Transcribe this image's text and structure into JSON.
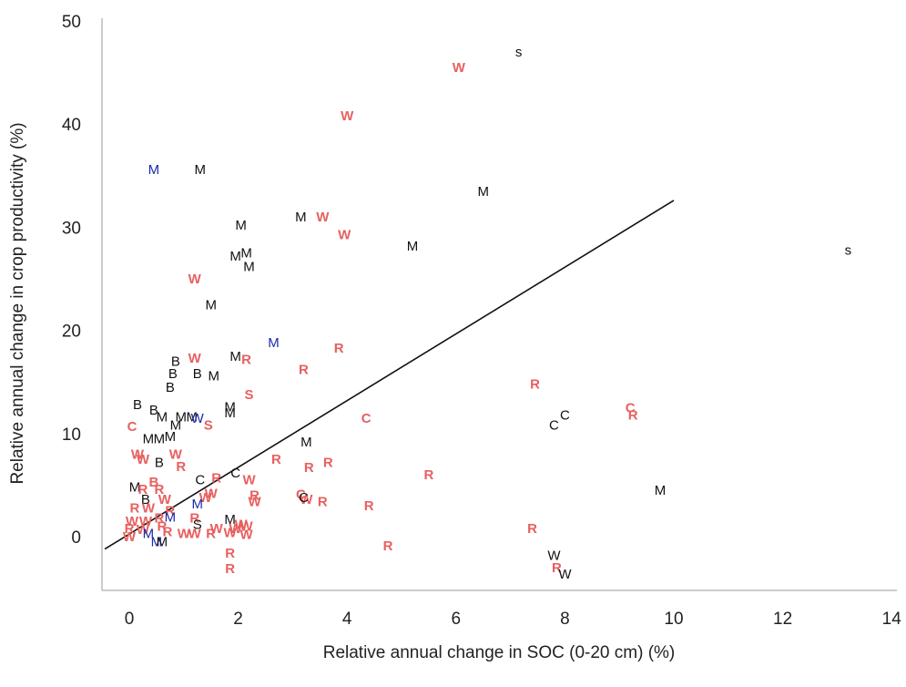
{
  "chart_data": {
    "type": "scatter",
    "title": "",
    "xlabel": "Relative annual change in SOC (0-20 cm) (%)",
    "ylabel": "Relative annual change in crop productivity (%)",
    "xlim": [
      -0.5,
      14
    ],
    "ylim": [
      -5,
      50
    ],
    "xticks": [
      "0",
      "2",
      "4",
      "6",
      "8",
      "10",
      "12",
      "14"
    ],
    "yticks": [
      "0",
      "10",
      "20",
      "30",
      "40",
      "50"
    ],
    "grid": false,
    "legend": "none",
    "colors": {
      "black": "#111111",
      "red": "#e86060",
      "blue": "#1a2aa8",
      "axis": "#999999",
      "line": "#111111"
    },
    "trendline": {
      "x": [
        -0.45,
        10.0
      ],
      "y": [
        -1.2,
        32.6
      ]
    },
    "points": [
      {
        "label": "s",
        "x": 7.15,
        "y": 47.0,
        "color": "black"
      },
      {
        "label": "W",
        "x": 6.05,
        "y": 45.5,
        "color": "red"
      },
      {
        "label": "W",
        "x": 4.0,
        "y": 40.8,
        "color": "red"
      },
      {
        "label": "M",
        "x": 0.45,
        "y": 35.6,
        "color": "blue"
      },
      {
        "label": "M",
        "x": 1.3,
        "y": 35.6,
        "color": "black"
      },
      {
        "label": "M",
        "x": 6.5,
        "y": 33.5,
        "color": "black"
      },
      {
        "label": "M",
        "x": 3.15,
        "y": 31.0,
        "color": "black"
      },
      {
        "label": "W",
        "x": 3.55,
        "y": 31.0,
        "color": "red"
      },
      {
        "label": "M",
        "x": 2.05,
        "y": 30.2,
        "color": "black"
      },
      {
        "label": "W",
        "x": 3.95,
        "y": 29.3,
        "color": "red"
      },
      {
        "label": "M",
        "x": 5.2,
        "y": 28.2,
        "color": "black"
      },
      {
        "label": "s",
        "x": 13.2,
        "y": 27.8,
        "color": "black"
      },
      {
        "label": "M",
        "x": 1.95,
        "y": 27.2,
        "color": "black"
      },
      {
        "label": "M",
        "x": 2.15,
        "y": 27.5,
        "color": "black"
      },
      {
        "label": "M",
        "x": 2.2,
        "y": 26.2,
        "color": "black"
      },
      {
        "label": "W",
        "x": 1.2,
        "y": 25.0,
        "color": "red"
      },
      {
        "label": "M",
        "x": 1.5,
        "y": 22.5,
        "color": "black"
      },
      {
        "label": "M",
        "x": 2.65,
        "y": 18.8,
        "color": "blue"
      },
      {
        "label": "R",
        "x": 3.85,
        "y": 18.3,
        "color": "red"
      },
      {
        "label": "M",
        "x": 1.95,
        "y": 17.5,
        "color": "black"
      },
      {
        "label": "R",
        "x": 2.15,
        "y": 17.2,
        "color": "red"
      },
      {
        "label": "W",
        "x": 1.2,
        "y": 17.3,
        "color": "red"
      },
      {
        "label": "B",
        "x": 0.85,
        "y": 17.0,
        "color": "black"
      },
      {
        "label": "R",
        "x": 3.2,
        "y": 16.2,
        "color": "red"
      },
      {
        "label": "B",
        "x": 0.8,
        "y": 15.8,
        "color": "black"
      },
      {
        "label": "B",
        "x": 1.25,
        "y": 15.8,
        "color": "black"
      },
      {
        "label": "M",
        "x": 1.55,
        "y": 15.6,
        "color": "black"
      },
      {
        "label": "R",
        "x": 7.45,
        "y": 14.8,
        "color": "red"
      },
      {
        "label": "B",
        "x": 0.75,
        "y": 14.5,
        "color": "black"
      },
      {
        "label": "S",
        "x": 2.2,
        "y": 13.8,
        "color": "red"
      },
      {
        "label": "B",
        "x": 0.15,
        "y": 12.8,
        "color": "black"
      },
      {
        "label": "B",
        "x": 0.45,
        "y": 12.3,
        "color": "black"
      },
      {
        "label": "M",
        "x": 1.85,
        "y": 12.6,
        "color": "black"
      },
      {
        "label": "M",
        "x": 1.85,
        "y": 12.0,
        "color": "black"
      },
      {
        "label": "C",
        "x": 9.2,
        "y": 12.5,
        "color": "red"
      },
      {
        "label": "R",
        "x": 9.25,
        "y": 11.8,
        "color": "red"
      },
      {
        "label": "C",
        "x": 8.0,
        "y": 11.8,
        "color": "black"
      },
      {
        "label": "C",
        "x": 7.8,
        "y": 10.8,
        "color": "black"
      },
      {
        "label": "M",
        "x": 0.6,
        "y": 11.6,
        "color": "black"
      },
      {
        "label": "M",
        "x": 0.95,
        "y": 11.6,
        "color": "black"
      },
      {
        "label": "M",
        "x": 1.15,
        "y": 11.6,
        "color": "black"
      },
      {
        "label": "W",
        "x": 1.25,
        "y": 11.5,
        "color": "blue"
      },
      {
        "label": "C",
        "x": 4.35,
        "y": 11.5,
        "color": "red"
      },
      {
        "label": "M",
        "x": 0.85,
        "y": 10.8,
        "color": "black"
      },
      {
        "label": "S",
        "x": 1.45,
        "y": 10.8,
        "color": "red"
      },
      {
        "label": "C",
        "x": 0.05,
        "y": 10.7,
        "color": "red"
      },
      {
        "label": "M",
        "x": 0.35,
        "y": 9.5,
        "color": "black"
      },
      {
        "label": "M",
        "x": 0.55,
        "y": 9.5,
        "color": "black"
      },
      {
        "label": "M",
        "x": 0.75,
        "y": 9.7,
        "color": "black"
      },
      {
        "label": "M",
        "x": 3.25,
        "y": 9.2,
        "color": "black"
      },
      {
        "label": "W",
        "x": 0.15,
        "y": 8.0,
        "color": "red"
      },
      {
        "label": "W",
        "x": 0.85,
        "y": 8.0,
        "color": "red"
      },
      {
        "label": "W",
        "x": 0.25,
        "y": 7.5,
        "color": "red"
      },
      {
        "label": "R",
        "x": 2.7,
        "y": 7.5,
        "color": "red"
      },
      {
        "label": "B",
        "x": 0.55,
        "y": 7.2,
        "color": "black"
      },
      {
        "label": "R",
        "x": 3.65,
        "y": 7.2,
        "color": "red"
      },
      {
        "label": "R",
        "x": 0.95,
        "y": 6.8,
        "color": "red"
      },
      {
        "label": "R",
        "x": 3.3,
        "y": 6.7,
        "color": "red"
      },
      {
        "label": "R",
        "x": 5.5,
        "y": 6.0,
        "color": "red"
      },
      {
        "label": "C",
        "x": 1.95,
        "y": 6.2,
        "color": "black"
      },
      {
        "label": "R",
        "x": 1.6,
        "y": 5.7,
        "color": "red"
      },
      {
        "label": "W",
        "x": 2.2,
        "y": 5.5,
        "color": "red"
      },
      {
        "label": "C",
        "x": 1.3,
        "y": 5.5,
        "color": "black"
      },
      {
        "label": "B",
        "x": 0.45,
        "y": 5.3,
        "color": "red"
      },
      {
        "label": "M",
        "x": 0.1,
        "y": 4.8,
        "color": "black"
      },
      {
        "label": "M",
        "x": 9.75,
        "y": 4.5,
        "color": "black"
      },
      {
        "label": "R",
        "x": 0.25,
        "y": 4.6,
        "color": "red"
      },
      {
        "label": "R",
        "x": 0.55,
        "y": 4.6,
        "color": "red"
      },
      {
        "label": "W",
        "x": 1.5,
        "y": 4.2,
        "color": "red"
      },
      {
        "label": "C",
        "x": 3.15,
        "y": 4.1,
        "color": "red"
      },
      {
        "label": "W",
        "x": 3.25,
        "y": 3.6,
        "color": "red"
      },
      {
        "label": "R",
        "x": 2.3,
        "y": 4.0,
        "color": "red"
      },
      {
        "label": "W",
        "x": 2.3,
        "y": 3.4,
        "color": "red"
      },
      {
        "label": "B",
        "x": 0.3,
        "y": 3.6,
        "color": "black"
      },
      {
        "label": "W",
        "x": 1.4,
        "y": 3.8,
        "color": "red"
      },
      {
        "label": "R",
        "x": 3.55,
        "y": 3.4,
        "color": "red"
      },
      {
        "label": "C",
        "x": 3.2,
        "y": 3.8,
        "color": "black"
      },
      {
        "label": "W",
        "x": 0.65,
        "y": 3.6,
        "color": "red"
      },
      {
        "label": "R",
        "x": 4.4,
        "y": 3.0,
        "color": "red"
      },
      {
        "label": "M",
        "x": 1.25,
        "y": 3.2,
        "color": "blue"
      },
      {
        "label": "R",
        "x": 0.1,
        "y": 2.8,
        "color": "red"
      },
      {
        "label": "W",
        "x": 0.35,
        "y": 2.8,
        "color": "red"
      },
      {
        "label": "R",
        "x": 0.75,
        "y": 2.5,
        "color": "red"
      },
      {
        "label": "M",
        "x": 0.75,
        "y": 1.9,
        "color": "blue"
      },
      {
        "label": "W",
        "x": 0.05,
        "y": 1.5,
        "color": "red"
      },
      {
        "label": "W",
        "x": 0.3,
        "y": 1.5,
        "color": "red"
      },
      {
        "label": "R",
        "x": 0.55,
        "y": 1.8,
        "color": "red"
      },
      {
        "label": "R",
        "x": 1.2,
        "y": 1.8,
        "color": "red"
      },
      {
        "label": "M",
        "x": 1.85,
        "y": 1.7,
        "color": "black"
      },
      {
        "label": "W",
        "x": 2.05,
        "y": 1.2,
        "color": "red"
      },
      {
        "label": "R",
        "x": 0.0,
        "y": 0.8,
        "color": "red"
      },
      {
        "label": "W",
        "x": 0.25,
        "y": 0.7,
        "color": "red"
      },
      {
        "label": "R",
        "x": 0.6,
        "y": 1.0,
        "color": "red"
      },
      {
        "label": "S",
        "x": 1.25,
        "y": 1.2,
        "color": "black"
      },
      {
        "label": "W",
        "x": 1.6,
        "y": 0.8,
        "color": "red"
      },
      {
        "label": "W",
        "x": 1.95,
        "y": 0.8,
        "color": "red"
      },
      {
        "label": "W",
        "x": 2.15,
        "y": 1.0,
        "color": "red"
      },
      {
        "label": "R",
        "x": 7.4,
        "y": 0.8,
        "color": "red"
      },
      {
        "label": "W",
        "x": 0.0,
        "y": 0.0,
        "color": "red"
      },
      {
        "label": "M",
        "x": 0.35,
        "y": 0.3,
        "color": "blue"
      },
      {
        "label": "R",
        "x": 0.7,
        "y": 0.5,
        "color": "red"
      },
      {
        "label": "W",
        "x": 1.0,
        "y": 0.3,
        "color": "red"
      },
      {
        "label": "W",
        "x": 1.2,
        "y": 0.3,
        "color": "red"
      },
      {
        "label": "R",
        "x": 1.5,
        "y": 0.3,
        "color": "red"
      },
      {
        "label": "W",
        "x": 1.85,
        "y": 0.4,
        "color": "red"
      },
      {
        "label": "W",
        "x": 2.15,
        "y": 0.2,
        "color": "red"
      },
      {
        "label": "M",
        "x": 0.5,
        "y": -0.5,
        "color": "blue"
      },
      {
        "label": "M",
        "x": 0.6,
        "y": -0.5,
        "color": "black"
      },
      {
        "label": "R",
        "x": 4.75,
        "y": -0.9,
        "color": "red"
      },
      {
        "label": "W",
        "x": 7.8,
        "y": -1.8,
        "color": "black"
      },
      {
        "label": "R",
        "x": 1.85,
        "y": -1.6,
        "color": "red"
      },
      {
        "label": "R",
        "x": 1.85,
        "y": -3.1,
        "color": "red"
      },
      {
        "label": "R",
        "x": 7.85,
        "y": -3.0,
        "color": "red"
      },
      {
        "label": "W",
        "x": 8.0,
        "y": -3.6,
        "color": "black"
      }
    ]
  }
}
